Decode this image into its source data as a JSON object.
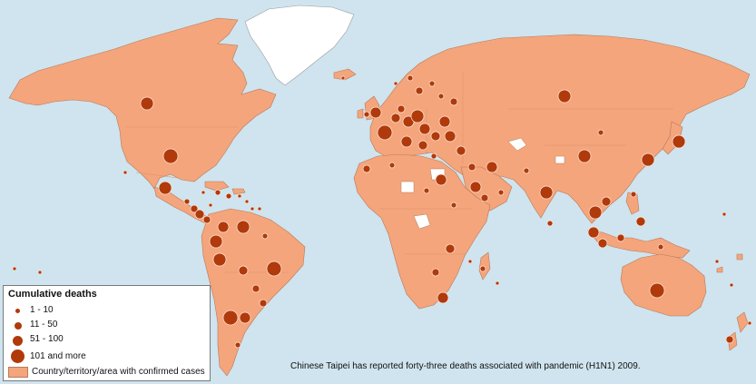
{
  "legend": {
    "title": "Cumulative deaths",
    "categories": [
      {
        "label": "1 - 10"
      },
      {
        "label": "11 - 50"
      },
      {
        "label": "51 - 100"
      },
      {
        "label": "101 and more"
      }
    ],
    "area_label": "Country/territory/area with confirmed cases"
  },
  "footnote": "Chinese Taipei has reported forty-three deaths associated with pandemic (H1N1) 2009.",
  "colors": {
    "ocean": "#cfe4ee",
    "confirmed_cases_area": "#f4a57c",
    "no_data_area": "#ffffff",
    "death_marker": "#b03a0b"
  }
}
